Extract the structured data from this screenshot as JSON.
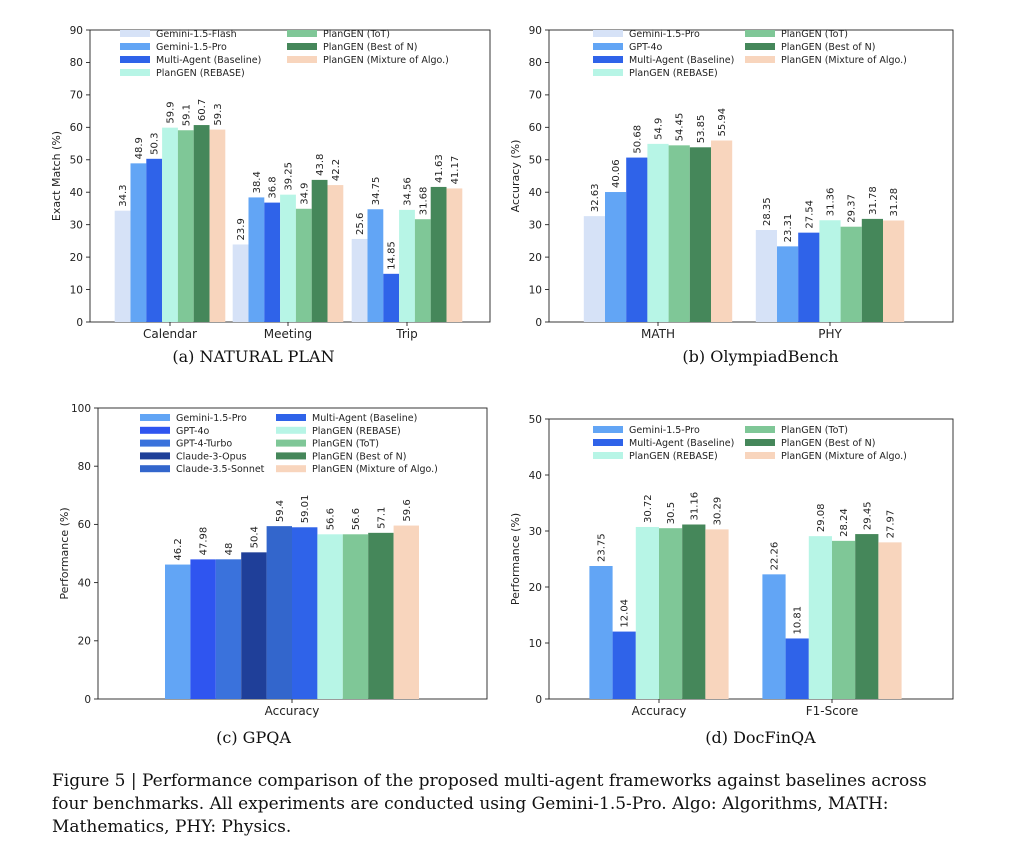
{
  "figure_caption": "Figure 5 | Performance comparison of the proposed multi-agent frameworks against baselines across four benchmarks. All experiments are conducted using Gemini-1.5-Pro. Algo: Algorithms, MATH: Mathematics, PHY: Physics.",
  "chart_data": [
    {
      "type": "bar",
      "caption": "(a) NATURAL PLAN",
      "ylabel": "Exact Match (%)",
      "ylim": [
        0,
        90
      ],
      "yticks": [
        0,
        10,
        20,
        30,
        40,
        50,
        60,
        70,
        80,
        90
      ],
      "categories": [
        "Calendar",
        "Meeting",
        "Trip"
      ],
      "legend": {
        "columns": 2,
        "location": "top"
      },
      "series": [
        {
          "name": "Gemini-1.5-Flash",
          "color": "#d6e2f7",
          "values": [
            34.3,
            23.9,
            25.6
          ]
        },
        {
          "name": "Gemini-1.5-Pro",
          "color": "#62a5f5",
          "values": [
            48.9,
            38.4,
            34.75
          ]
        },
        {
          "name": "Multi-Agent (Baseline)",
          "color": "#2f63e9",
          "values": [
            50.3,
            36.8,
            14.85
          ]
        },
        {
          "name": "PlanGEN (REBASE)",
          "color": "#b7f5e6",
          "values": [
            59.9,
            39.25,
            34.56
          ]
        },
        {
          "name": "PlanGEN (ToT)",
          "color": "#7fc797",
          "values": [
            59.1,
            34.9,
            31.68
          ]
        },
        {
          "name": "PlanGEN (Best of N)",
          "color": "#45875a",
          "values": [
            60.7,
            43.8,
            41.63
          ]
        },
        {
          "name": "PlanGEN (Mixture of Algo.)",
          "color": "#f8d5bd",
          "values": [
            59.3,
            42.2,
            41.17
          ]
        }
      ],
      "value_labels": [
        [
          "34.3",
          "23.9",
          "25.6"
        ],
        [
          "48.9",
          "38.4",
          "34.75"
        ],
        [
          "50.3",
          "36.8",
          "14.85"
        ],
        [
          "59.9",
          "39.25",
          "34.56"
        ],
        [
          "59.1",
          "34.9",
          "31.68"
        ],
        [
          "60.7",
          "43.8",
          "41.63"
        ],
        [
          "59.3",
          "42.2",
          "41.17"
        ]
      ]
    },
    {
      "type": "bar",
      "caption": "(b) OlympiadBench",
      "ylabel": "Accuracy (%)",
      "ylim": [
        0,
        90
      ],
      "yticks": [
        0,
        10,
        20,
        30,
        40,
        50,
        60,
        70,
        80,
        90
      ],
      "categories": [
        "MATH",
        "PHY"
      ],
      "legend": {
        "columns": 2,
        "location": "top"
      },
      "series": [
        {
          "name": "Gemini-1.5-Pro",
          "color": "#d6e2f7",
          "values": [
            32.63,
            28.35
          ]
        },
        {
          "name": "GPT-4o",
          "color": "#62a5f5",
          "values": [
            40.06,
            23.31
          ]
        },
        {
          "name": "Multi-Agent (Baseline)",
          "color": "#2f63e9",
          "values": [
            50.68,
            27.54
          ]
        },
        {
          "name": "PlanGEN (REBASE)",
          "color": "#b7f5e6",
          "values": [
            54.9,
            31.36
          ]
        },
        {
          "name": "PlanGEN (ToT)",
          "color": "#7fc797",
          "values": [
            54.45,
            29.37
          ]
        },
        {
          "name": "PlanGEN (Best of N)",
          "color": "#45875a",
          "values": [
            53.85,
            31.78
          ]
        },
        {
          "name": "PlanGEN (Mixture of Algo.)",
          "color": "#f8d5bd",
          "values": [
            55.94,
            31.28
          ]
        }
      ],
      "value_labels": [
        [
          "32.63",
          "28.35"
        ],
        [
          "40.06",
          "23.31"
        ],
        [
          "50.68",
          "27.54"
        ],
        [
          "54.9",
          "31.36"
        ],
        [
          "54.45",
          "29.37"
        ],
        [
          "53.85",
          "31.78"
        ],
        [
          "55.94",
          "31.28"
        ]
      ]
    },
    {
      "type": "bar",
      "caption": "(c) GPQA",
      "ylabel": "Performance (%)",
      "ylim": [
        0,
        100
      ],
      "yticks": [
        0,
        20,
        40,
        60,
        80,
        100
      ],
      "categories": [
        "Accuracy"
      ],
      "legend": {
        "columns": 2,
        "location": "top"
      },
      "series": [
        {
          "name": "Gemini-1.5-Pro",
          "color": "#62a5f5",
          "values": [
            46.2
          ]
        },
        {
          "name": "GPT-4o",
          "color": "#2f55f0",
          "values": [
            47.98
          ]
        },
        {
          "name": "GPT-4-Turbo",
          "color": "#3a72dc",
          "values": [
            48
          ]
        },
        {
          "name": "Claude-3-Opus",
          "color": "#1f3f99",
          "values": [
            50.4
          ]
        },
        {
          "name": "Claude-3.5-Sonnet",
          "color": "#3366cc",
          "values": [
            59.4
          ]
        },
        {
          "name": "Multi-Agent (Baseline)",
          "color": "#2f63e9",
          "values": [
            59.01
          ]
        },
        {
          "name": "PlanGEN (REBASE)",
          "color": "#b7f5e6",
          "values": [
            56.6
          ]
        },
        {
          "name": "PlanGEN (ToT)",
          "color": "#7fc797",
          "values": [
            56.6
          ]
        },
        {
          "name": "PlanGEN (Best of N)",
          "color": "#45875a",
          "values": [
            57.1
          ]
        },
        {
          "name": "PlanGEN (Mixture of Algo.)",
          "color": "#f8d5bd",
          "values": [
            59.6
          ]
        }
      ],
      "value_labels": [
        [
          "46.2"
        ],
        [
          "47.98"
        ],
        [
          "48"
        ],
        [
          "50.4"
        ],
        [
          "59.4"
        ],
        [
          "59.01"
        ],
        [
          "56.6"
        ],
        [
          "56.6"
        ],
        [
          "57.1"
        ],
        [
          "59.6"
        ]
      ]
    },
    {
      "type": "bar",
      "caption": "(d) DocFinQA",
      "ylabel": "Performance (%)",
      "ylim": [
        0,
        50
      ],
      "yticks": [
        0,
        10,
        20,
        30,
        40,
        50
      ],
      "categories": [
        "Accuracy",
        "F1-Score"
      ],
      "legend": {
        "columns": 2,
        "location": "top"
      },
      "series": [
        {
          "name": "Gemini-1.5-Pro",
          "color": "#62a5f5",
          "values": [
            23.75,
            22.26
          ]
        },
        {
          "name": "Multi-Agent (Baseline)",
          "color": "#2f63e9",
          "values": [
            12.04,
            10.81
          ]
        },
        {
          "name": "PlanGEN (REBASE)",
          "color": "#b7f5e6",
          "values": [
            30.72,
            29.08
          ]
        },
        {
          "name": "PlanGEN (ToT)",
          "color": "#7fc797",
          "values": [
            30.5,
            28.24
          ]
        },
        {
          "name": "PlanGEN (Best of N)",
          "color": "#45875a",
          "values": [
            31.16,
            29.45
          ]
        },
        {
          "name": "PlanGEN (Mixture of Algo.)",
          "color": "#f8d5bd",
          "values": [
            30.29,
            27.97
          ]
        }
      ],
      "value_labels": [
        [
          "23.75",
          "22.26"
        ],
        [
          "12.04",
          "10.81"
        ],
        [
          "30.72",
          "29.08"
        ],
        [
          "30.5",
          "28.24"
        ],
        [
          "31.16",
          "29.45"
        ],
        [
          "30.29",
          "27.97"
        ]
      ]
    }
  ]
}
